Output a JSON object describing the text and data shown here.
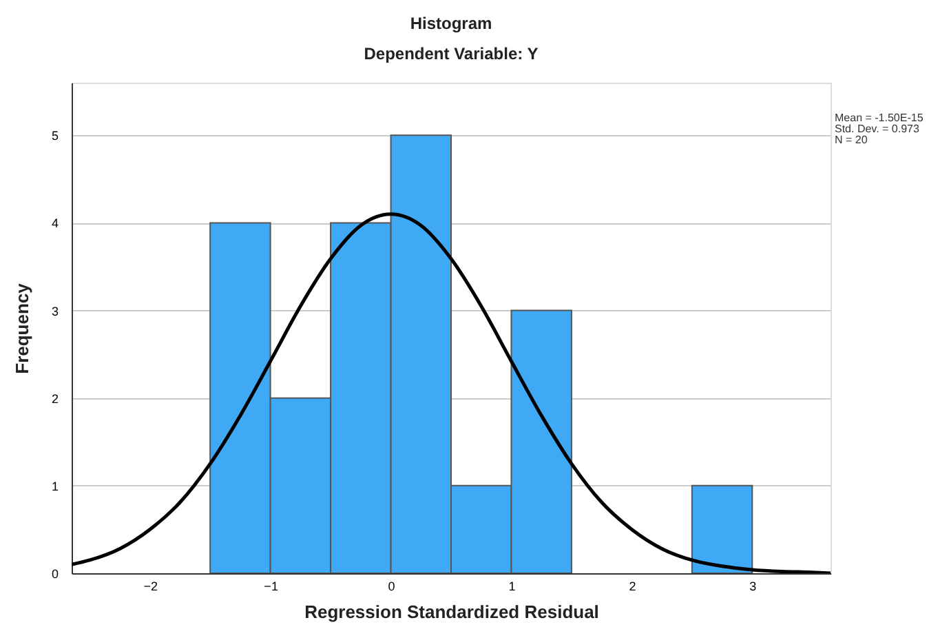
{
  "chart_data": {
    "type": "histogram",
    "title": "Histogram",
    "subtitle": "Dependent Variable: Y",
    "xlabel": "Regression Standardized Residual",
    "ylabel": "Frequency",
    "bins": [
      -1.5,
      -1.0,
      -0.5,
      0.0,
      0.5,
      1.0,
      1.5,
      2.0,
      2.5,
      3.0
    ],
    "values": [
      4,
      2,
      4,
      5,
      1,
      3,
      0,
      0,
      1
    ],
    "color": "#3fa9f5",
    "series": [
      {
        "type": "line",
        "color": "#000000",
        "x": [
          -2.65,
          -2.5,
          -2.25,
          -2.0,
          -1.75,
          -1.5,
          -1.25,
          -1.0,
          -0.75,
          -0.5,
          -0.25,
          0.0,
          0.25,
          0.5,
          0.75,
          1.0,
          1.25,
          1.5,
          1.75,
          2.0,
          2.25,
          2.5,
          2.75,
          3.0,
          3.25,
          3.5,
          3.65
        ],
        "values": [
          0.1,
          0.15,
          0.28,
          0.5,
          0.81,
          1.25,
          1.8,
          2.42,
          3.05,
          3.59,
          3.97,
          4.1,
          3.97,
          3.59,
          3.05,
          2.42,
          1.8,
          1.25,
          0.81,
          0.5,
          0.28,
          0.15,
          0.08,
          0.04,
          0.02,
          0.01,
          0.0
        ]
      }
    ],
    "xlim": [
      -2.65,
      3.65
    ],
    "xticks": [
      -2,
      -1,
      0,
      1,
      2,
      3
    ],
    "ylim": [
      0,
      5.6
    ],
    "yticks": [
      0,
      1,
      2,
      3,
      4,
      5
    ],
    "grid": "y",
    "annotations": [
      "Mean = -1.50E-15",
      "Std. Dev. = 0.973",
      "N = 20"
    ]
  }
}
